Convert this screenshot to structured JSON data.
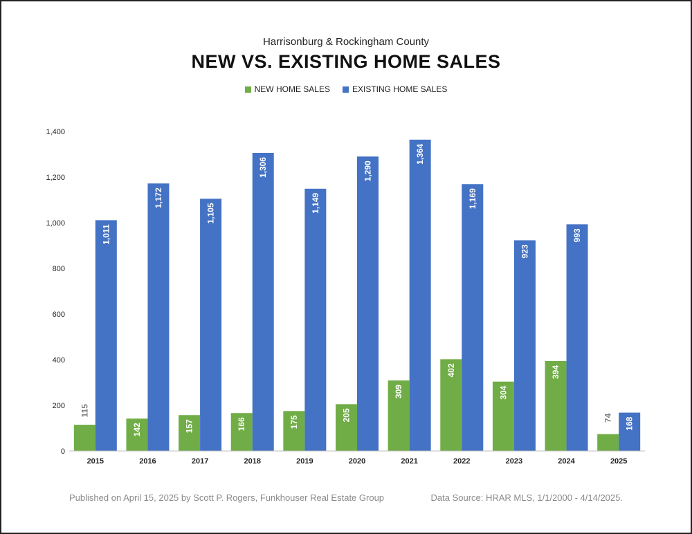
{
  "header": {
    "subtitle": "Harrisonburg & Rockingham County",
    "title": "NEW VS. EXISTING HOME SALES"
  },
  "footer": {
    "published": "Published on April 15, 2025 by Scott P. Rogers, Funkhouser Real Estate Group",
    "source": "Data Source: HRAR MLS, 1/1/2000 - 4/14/2025."
  },
  "chart_data": {
    "type": "bar",
    "title": "NEW VS. EXISTING HOME SALES",
    "subtitle": "Harrisonburg & Rockingham County",
    "xlabel": "",
    "ylabel": "",
    "categories": [
      "2015",
      "2016",
      "2017",
      "2018",
      "2019",
      "2020",
      "2021",
      "2022",
      "2023",
      "2024",
      "2025"
    ],
    "series": [
      {
        "name": "NEW HOME SALES",
        "color": "#70ad47",
        "values": [
          115,
          142,
          157,
          166,
          175,
          205,
          309,
          402,
          304,
          394,
          74
        ],
        "labels": [
          "115",
          "142",
          "157",
          "166",
          "175",
          "205",
          "309",
          "402",
          "304",
          "394",
          "74"
        ]
      },
      {
        "name": "EXISTING HOME SALES",
        "color": "#4472c4",
        "values": [
          1011,
          1172,
          1105,
          1306,
          1149,
          1290,
          1364,
          1169,
          923,
          993,
          168
        ],
        "labels": [
          "1,011",
          "1,172",
          "1,105",
          "1,306",
          "1,149",
          "1,290",
          "1,364",
          "1,169",
          "923",
          "993",
          "168"
        ]
      }
    ],
    "ylim": [
      0,
      1400
    ],
    "yticks": [
      0,
      200,
      400,
      600,
      800,
      1000,
      1200,
      1400
    ],
    "ytick_labels": [
      "0",
      "200",
      "400",
      "600",
      "800",
      "1,000",
      "1,200",
      "1,400"
    ],
    "grid": false,
    "legend": "top-center"
  }
}
